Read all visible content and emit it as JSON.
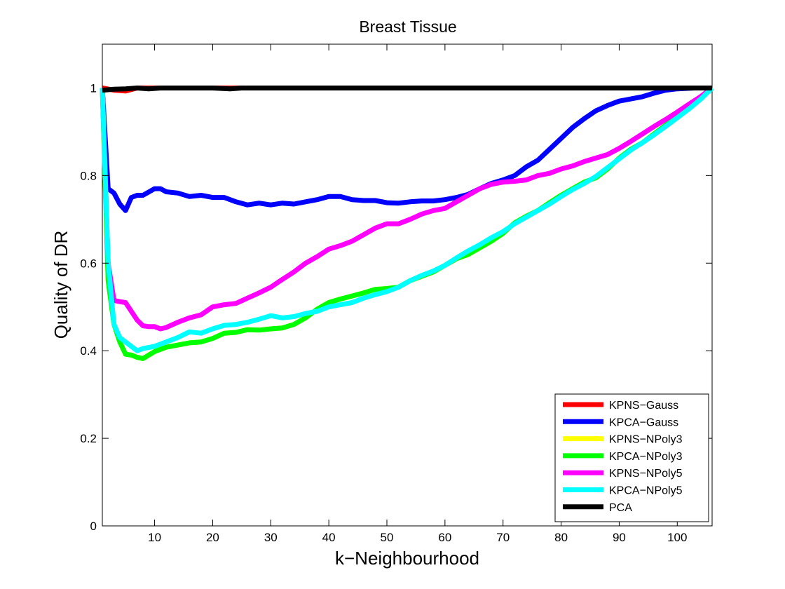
{
  "chart_data": {
    "type": "line",
    "title": "Breast Tissue",
    "xlabel": "k−Neighbourhood",
    "ylabel": "Quality of DR",
    "xlim": [
      1,
      106
    ],
    "ylim": [
      0,
      1.1
    ],
    "xticks": [
      10,
      20,
      30,
      40,
      50,
      60,
      70,
      80,
      90,
      100
    ],
    "xtick_labels": [
      "10",
      "20",
      "30",
      "40",
      "50",
      "60",
      "70",
      "80",
      "90",
      "100"
    ],
    "yticks": [
      0,
      0.2,
      0.4,
      0.6,
      0.8,
      1
    ],
    "ytick_labels": [
      "0",
      "0.2",
      "0.4",
      "0.6",
      "0.8",
      "1"
    ],
    "grid": false,
    "legend_position": "bottom-right",
    "series": [
      {
        "name": "KPNS−Gauss",
        "color": "#ff0000",
        "points": [
          [
            1,
            1.0
          ],
          [
            3,
            0.995
          ],
          [
            5,
            0.993
          ],
          [
            7,
            1.0
          ],
          [
            10,
            1.0
          ],
          [
            20,
            1.0
          ],
          [
            40,
            1.0
          ],
          [
            60,
            1.0
          ],
          [
            80,
            1.0
          ],
          [
            100,
            1.0
          ],
          [
            106,
            1.0
          ]
        ]
      },
      {
        "name": "KPCA−Gauss",
        "color": "#0000ff",
        "points": [
          [
            1,
            1.0
          ],
          [
            2,
            0.77
          ],
          [
            3,
            0.76
          ],
          [
            4,
            0.735
          ],
          [
            5,
            0.72
          ],
          [
            6,
            0.75
          ],
          [
            7,
            0.755
          ],
          [
            8,
            0.755
          ],
          [
            10,
            0.77
          ],
          [
            11,
            0.77
          ],
          [
            12,
            0.763
          ],
          [
            14,
            0.76
          ],
          [
            16,
            0.752
          ],
          [
            18,
            0.755
          ],
          [
            20,
            0.75
          ],
          [
            22,
            0.75
          ],
          [
            24,
            0.74
          ],
          [
            26,
            0.733
          ],
          [
            28,
            0.737
          ],
          [
            30,
            0.733
          ],
          [
            32,
            0.737
          ],
          [
            34,
            0.735
          ],
          [
            36,
            0.74
          ],
          [
            38,
            0.745
          ],
          [
            40,
            0.752
          ],
          [
            42,
            0.752
          ],
          [
            44,
            0.745
          ],
          [
            46,
            0.743
          ],
          [
            48,
            0.743
          ],
          [
            50,
            0.738
          ],
          [
            52,
            0.737
          ],
          [
            54,
            0.74
          ],
          [
            56,
            0.742
          ],
          [
            58,
            0.742
          ],
          [
            60,
            0.745
          ],
          [
            62,
            0.75
          ],
          [
            64,
            0.757
          ],
          [
            66,
            0.77
          ],
          [
            68,
            0.782
          ],
          [
            70,
            0.79
          ],
          [
            72,
            0.8
          ],
          [
            74,
            0.82
          ],
          [
            76,
            0.835
          ],
          [
            78,
            0.86
          ],
          [
            80,
            0.885
          ],
          [
            82,
            0.91
          ],
          [
            84,
            0.93
          ],
          [
            86,
            0.948
          ],
          [
            88,
            0.96
          ],
          [
            90,
            0.97
          ],
          [
            92,
            0.975
          ],
          [
            94,
            0.98
          ],
          [
            96,
            0.988
          ],
          [
            98,
            0.995
          ],
          [
            100,
            0.998
          ],
          [
            103,
            1.0
          ],
          [
            106,
            1.0
          ]
        ]
      },
      {
        "name": "KPNS−NPoly3",
        "color": "#ffff00",
        "points": [
          [
            1,
            1.0
          ],
          [
            2,
            0.56
          ],
          [
            3,
            0.46
          ],
          [
            4,
            0.42
          ],
          [
            5,
            0.392
          ],
          [
            6,
            0.39
          ],
          [
            7,
            0.385
          ],
          [
            8,
            0.382
          ],
          [
            9,
            0.39
          ],
          [
            10,
            0.398
          ],
          [
            12,
            0.408
          ],
          [
            14,
            0.413
          ],
          [
            16,
            0.418
          ],
          [
            18,
            0.42
          ],
          [
            20,
            0.428
          ],
          [
            22,
            0.44
          ],
          [
            24,
            0.442
          ],
          [
            26,
            0.448
          ],
          [
            28,
            0.447
          ],
          [
            30,
            0.45
          ],
          [
            32,
            0.452
          ],
          [
            34,
            0.46
          ],
          [
            36,
            0.475
          ],
          [
            38,
            0.495
          ],
          [
            40,
            0.51
          ],
          [
            42,
            0.518
          ],
          [
            44,
            0.525
          ],
          [
            46,
            0.532
          ],
          [
            48,
            0.54
          ],
          [
            50,
            0.542
          ],
          [
            52,
            0.545
          ],
          [
            54,
            0.56
          ],
          [
            56,
            0.57
          ],
          [
            58,
            0.58
          ],
          [
            60,
            0.595
          ],
          [
            62,
            0.61
          ],
          [
            64,
            0.62
          ],
          [
            66,
            0.635
          ],
          [
            68,
            0.65
          ],
          [
            70,
            0.668
          ],
          [
            72,
            0.692
          ],
          [
            74,
            0.707
          ],
          [
            76,
            0.72
          ],
          [
            78,
            0.738
          ],
          [
            80,
            0.755
          ],
          [
            82,
            0.77
          ],
          [
            84,
            0.785
          ],
          [
            86,
            0.795
          ],
          [
            88,
            0.815
          ],
          [
            90,
            0.84
          ],
          [
            92,
            0.86
          ],
          [
            94,
            0.875
          ],
          [
            96,
            0.895
          ],
          [
            98,
            0.915
          ],
          [
            100,
            0.935
          ],
          [
            102,
            0.955
          ],
          [
            104,
            0.975
          ],
          [
            106,
            1.0
          ]
        ]
      },
      {
        "name": "KPCA−NPoly3",
        "color": "#00ff00",
        "points": [
          [
            1,
            1.0
          ],
          [
            2,
            0.56
          ],
          [
            3,
            0.46
          ],
          [
            4,
            0.42
          ],
          [
            5,
            0.392
          ],
          [
            6,
            0.39
          ],
          [
            7,
            0.385
          ],
          [
            8,
            0.382
          ],
          [
            9,
            0.39
          ],
          [
            10,
            0.398
          ],
          [
            12,
            0.408
          ],
          [
            14,
            0.413
          ],
          [
            16,
            0.418
          ],
          [
            18,
            0.42
          ],
          [
            20,
            0.428
          ],
          [
            22,
            0.44
          ],
          [
            24,
            0.442
          ],
          [
            26,
            0.448
          ],
          [
            28,
            0.447
          ],
          [
            30,
            0.45
          ],
          [
            32,
            0.452
          ],
          [
            34,
            0.46
          ],
          [
            36,
            0.475
          ],
          [
            38,
            0.495
          ],
          [
            40,
            0.51
          ],
          [
            42,
            0.518
          ],
          [
            44,
            0.525
          ],
          [
            46,
            0.532
          ],
          [
            48,
            0.54
          ],
          [
            50,
            0.542
          ],
          [
            52,
            0.545
          ],
          [
            54,
            0.56
          ],
          [
            56,
            0.57
          ],
          [
            58,
            0.58
          ],
          [
            60,
            0.595
          ],
          [
            62,
            0.61
          ],
          [
            64,
            0.62
          ],
          [
            66,
            0.635
          ],
          [
            68,
            0.65
          ],
          [
            70,
            0.668
          ],
          [
            72,
            0.692
          ],
          [
            74,
            0.707
          ],
          [
            76,
            0.72
          ],
          [
            78,
            0.738
          ],
          [
            80,
            0.755
          ],
          [
            82,
            0.77
          ],
          [
            84,
            0.785
          ],
          [
            86,
            0.795
          ],
          [
            88,
            0.815
          ],
          [
            90,
            0.84
          ],
          [
            92,
            0.86
          ],
          [
            94,
            0.875
          ],
          [
            96,
            0.895
          ],
          [
            98,
            0.915
          ],
          [
            100,
            0.935
          ],
          [
            102,
            0.955
          ],
          [
            104,
            0.975
          ],
          [
            106,
            1.0
          ]
        ]
      },
      {
        "name": "KPNS−NPoly5",
        "color": "#ff00ff",
        "points": [
          [
            1,
            1.0
          ],
          [
            2,
            0.6
          ],
          [
            3,
            0.515
          ],
          [
            4,
            0.512
          ],
          [
            5,
            0.51
          ],
          [
            6,
            0.49
          ],
          [
            7,
            0.47
          ],
          [
            8,
            0.457
          ],
          [
            9,
            0.455
          ],
          [
            10,
            0.455
          ],
          [
            11,
            0.45
          ],
          [
            12,
            0.453
          ],
          [
            14,
            0.465
          ],
          [
            16,
            0.475
          ],
          [
            18,
            0.482
          ],
          [
            20,
            0.5
          ],
          [
            22,
            0.505
          ],
          [
            24,
            0.508
          ],
          [
            26,
            0.52
          ],
          [
            28,
            0.532
          ],
          [
            30,
            0.545
          ],
          [
            32,
            0.563
          ],
          [
            34,
            0.58
          ],
          [
            36,
            0.6
          ],
          [
            38,
            0.615
          ],
          [
            40,
            0.632
          ],
          [
            42,
            0.64
          ],
          [
            44,
            0.65
          ],
          [
            46,
            0.665
          ],
          [
            48,
            0.68
          ],
          [
            50,
            0.69
          ],
          [
            52,
            0.69
          ],
          [
            54,
            0.7
          ],
          [
            56,
            0.712
          ],
          [
            58,
            0.72
          ],
          [
            60,
            0.725
          ],
          [
            62,
            0.74
          ],
          [
            64,
            0.755
          ],
          [
            66,
            0.77
          ],
          [
            68,
            0.78
          ],
          [
            70,
            0.785
          ],
          [
            72,
            0.787
          ],
          [
            74,
            0.79
          ],
          [
            76,
            0.8
          ],
          [
            78,
            0.805
          ],
          [
            80,
            0.815
          ],
          [
            82,
            0.822
          ],
          [
            84,
            0.832
          ],
          [
            86,
            0.84
          ],
          [
            88,
            0.848
          ],
          [
            90,
            0.862
          ],
          [
            92,
            0.878
          ],
          [
            94,
            0.895
          ],
          [
            96,
            0.912
          ],
          [
            98,
            0.928
          ],
          [
            100,
            0.945
          ],
          [
            102,
            0.963
          ],
          [
            104,
            0.98
          ],
          [
            106,
            1.0
          ]
        ]
      },
      {
        "name": "KPCA−NPoly5",
        "color": "#00ffff",
        "points": [
          [
            1,
            1.0
          ],
          [
            2,
            0.6
          ],
          [
            3,
            0.46
          ],
          [
            4,
            0.43
          ],
          [
            5,
            0.42
          ],
          [
            6,
            0.41
          ],
          [
            7,
            0.4
          ],
          [
            8,
            0.405
          ],
          [
            10,
            0.41
          ],
          [
            12,
            0.42
          ],
          [
            14,
            0.43
          ],
          [
            16,
            0.443
          ],
          [
            18,
            0.44
          ],
          [
            20,
            0.45
          ],
          [
            22,
            0.458
          ],
          [
            24,
            0.46
          ],
          [
            26,
            0.465
          ],
          [
            28,
            0.472
          ],
          [
            30,
            0.48
          ],
          [
            32,
            0.475
          ],
          [
            34,
            0.478
          ],
          [
            36,
            0.485
          ],
          [
            38,
            0.49
          ],
          [
            40,
            0.5
          ],
          [
            42,
            0.505
          ],
          [
            44,
            0.51
          ],
          [
            46,
            0.52
          ],
          [
            48,
            0.528
          ],
          [
            50,
            0.535
          ],
          [
            52,
            0.545
          ],
          [
            54,
            0.56
          ],
          [
            56,
            0.572
          ],
          [
            58,
            0.582
          ],
          [
            60,
            0.595
          ],
          [
            62,
            0.612
          ],
          [
            64,
            0.628
          ],
          [
            66,
            0.642
          ],
          [
            68,
            0.658
          ],
          [
            70,
            0.672
          ],
          [
            72,
            0.69
          ],
          [
            74,
            0.705
          ],
          [
            76,
            0.72
          ],
          [
            78,
            0.735
          ],
          [
            80,
            0.752
          ],
          [
            82,
            0.768
          ],
          [
            84,
            0.782
          ],
          [
            86,
            0.798
          ],
          [
            88,
            0.818
          ],
          [
            90,
            0.838
          ],
          [
            92,
            0.858
          ],
          [
            94,
            0.875
          ],
          [
            96,
            0.893
          ],
          [
            98,
            0.912
          ],
          [
            100,
            0.932
          ],
          [
            102,
            0.952
          ],
          [
            104,
            0.974
          ],
          [
            106,
            1.0
          ]
        ]
      },
      {
        "name": "PCA",
        "color": "#000000",
        "points": [
          [
            1,
            0.995
          ],
          [
            3,
            0.997
          ],
          [
            5,
            0.998
          ],
          [
            7,
            1.0
          ],
          [
            9,
            0.998
          ],
          [
            11,
            1.0
          ],
          [
            20,
            1.0
          ],
          [
            23,
            0.998
          ],
          [
            25,
            1.0
          ],
          [
            40,
            1.0
          ],
          [
            60,
            1.0
          ],
          [
            80,
            1.0
          ],
          [
            100,
            1.0
          ],
          [
            106,
            1.0
          ]
        ]
      }
    ]
  }
}
